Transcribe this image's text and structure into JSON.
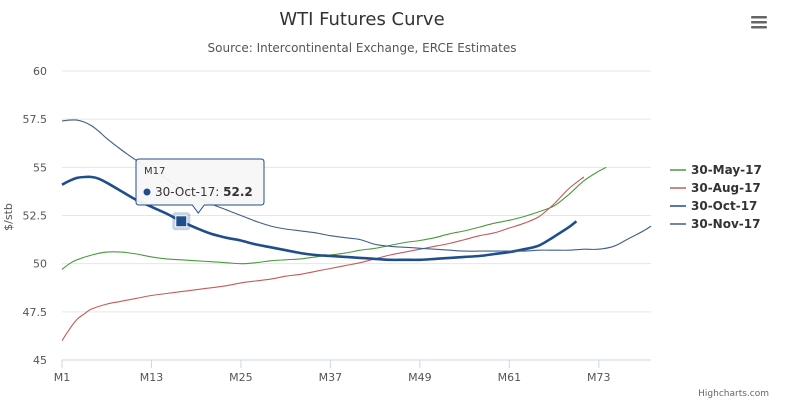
{
  "chart_data": {
    "type": "line",
    "title": "WTI Futures Curve",
    "subtitle": "Source: Intercontinental Exchange, ERCE Estimates",
    "ylabel": "$/stb",
    "xlabel": "",
    "ylim": [
      45,
      60
    ],
    "yticks": [
      "45",
      "47.5",
      "50",
      "52.5",
      "55",
      "57.5",
      "60"
    ],
    "xticks": [
      "M1",
      "M13",
      "M25",
      "M37",
      "M49",
      "M61",
      "M73"
    ],
    "grid": true,
    "legend_position": "right",
    "series": [
      {
        "name": "30-May-17",
        "color": "#4a9a3d",
        "x": [
          1,
          2,
          3,
          5,
          7,
          9,
          11,
          13,
          15,
          17,
          19,
          21,
          23,
          25,
          27,
          29,
          31,
          33,
          35,
          37,
          39,
          41,
          43,
          45,
          47,
          49,
          51,
          53,
          55,
          57,
          59,
          61,
          63,
          65,
          67,
          69,
          71,
          73,
          74
        ],
        "values": [
          49.7,
          50.0,
          50.2,
          50.45,
          50.6,
          50.6,
          50.5,
          50.35,
          50.25,
          50.2,
          50.15,
          50.1,
          50.05,
          50.0,
          50.05,
          50.15,
          50.2,
          50.25,
          50.35,
          50.45,
          50.55,
          50.7,
          50.8,
          50.95,
          51.1,
          51.2,
          51.35,
          51.55,
          51.7,
          51.9,
          52.1,
          52.25,
          52.45,
          52.7,
          53.0,
          53.6,
          54.3,
          54.8,
          55.0
        ]
      },
      {
        "name": "30-Aug-17",
        "color": "#c65a5a",
        "x": [
          1,
          2,
          3,
          4,
          5,
          7,
          9,
          11,
          13,
          15,
          17,
          19,
          21,
          23,
          25,
          27,
          29,
          31,
          33,
          35,
          37,
          39,
          41,
          43,
          45,
          47,
          49,
          51,
          53,
          55,
          57,
          59,
          61,
          63,
          65,
          67,
          69,
          71
        ],
        "values": [
          46.0,
          46.6,
          47.1,
          47.4,
          47.65,
          47.9,
          48.05,
          48.2,
          48.35,
          48.45,
          48.55,
          48.65,
          48.75,
          48.85,
          49.0,
          49.1,
          49.2,
          49.35,
          49.45,
          49.6,
          49.75,
          49.9,
          50.05,
          50.25,
          50.45,
          50.6,
          50.75,
          50.9,
          51.05,
          51.25,
          51.45,
          51.6,
          51.85,
          52.1,
          52.45,
          53.1,
          53.9,
          54.5
        ]
      },
      {
        "name": "30-Oct-17",
        "color": "#1f4e8c",
        "x": [
          1,
          2,
          3,
          4,
          5,
          6,
          7,
          9,
          11,
          13,
          15,
          17,
          19,
          21,
          23,
          25,
          27,
          29,
          31,
          33,
          35,
          37,
          39,
          41,
          43,
          45,
          47,
          49,
          51,
          53,
          55,
          57,
          59,
          61,
          63,
          65,
          67,
          69,
          70
        ],
        "values": [
          54.1,
          54.3,
          54.45,
          54.5,
          54.5,
          54.4,
          54.2,
          53.75,
          53.3,
          52.95,
          52.6,
          52.2,
          51.85,
          51.55,
          51.35,
          51.2,
          51.0,
          50.85,
          50.7,
          50.55,
          50.45,
          50.4,
          50.35,
          50.3,
          50.25,
          50.2,
          50.2,
          50.2,
          50.25,
          50.3,
          50.35,
          50.4,
          50.5,
          50.6,
          50.75,
          50.95,
          51.4,
          51.9,
          52.2
        ]
      },
      {
        "name": "30-Nov-17",
        "color": "#3f5f8a",
        "x": [
          1,
          2,
          3,
          4,
          5,
          6,
          7,
          9,
          11,
          13,
          15,
          17,
          19,
          21,
          23,
          25,
          27,
          29,
          31,
          33,
          35,
          37,
          39,
          41,
          43,
          45,
          47,
          49,
          51,
          53,
          55,
          57,
          59,
          61,
          63,
          65,
          67,
          69,
          71,
          73,
          75,
          77,
          79,
          80
        ],
        "values": [
          57.4,
          57.45,
          57.45,
          57.35,
          57.15,
          56.85,
          56.5,
          55.9,
          55.35,
          54.85,
          54.4,
          53.9,
          53.5,
          53.1,
          52.8,
          52.5,
          52.2,
          51.95,
          51.8,
          51.7,
          51.6,
          51.45,
          51.35,
          51.25,
          51.0,
          50.9,
          50.85,
          50.8,
          50.75,
          50.7,
          50.65,
          50.65,
          50.65,
          50.65,
          50.65,
          50.7,
          50.7,
          50.7,
          50.75,
          50.75,
          50.9,
          51.3,
          51.7,
          51.95
        ]
      }
    ],
    "tooltip": {
      "header": "M17",
      "series_name": "30-Oct-17",
      "value": "52.2",
      "x": 17,
      "y": 52.2
    },
    "credits": "Highcharts.com"
  },
  "ui": {
    "menu_icon": "hamburger-menu-icon",
    "marker_icon": "square-point-marker"
  }
}
